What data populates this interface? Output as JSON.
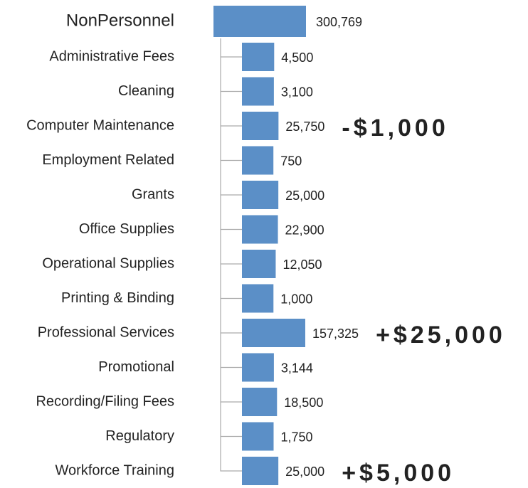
{
  "chart_data": {
    "type": "bar",
    "root": {
      "label": "NonPersonnel",
      "value": 300769,
      "value_label": "300,769"
    },
    "categories": [
      "Administrative Fees",
      "Cleaning",
      "Computer Maintenance",
      "Employment Related",
      "Grants",
      "Office Supplies",
      "Operational Supplies",
      "Printing & Binding",
      "Professional Services",
      "Promotional",
      "Recording/Filing Fees",
      "Regulatory",
      "Workforce Training"
    ],
    "values": [
      4500,
      3100,
      25750,
      750,
      25000,
      22900,
      12050,
      1000,
      157325,
      3144,
      18500,
      1750,
      25000
    ],
    "value_labels": [
      "4,500",
      "3,100",
      "25,750",
      "750",
      "25,000",
      "22,900",
      "12,050",
      "1,000",
      "157,325",
      "3,144",
      "18,500",
      "1,750",
      "25,000"
    ],
    "color": "#5b8fc7",
    "annotations": [
      {
        "text": "-$1,000",
        "category": 2,
        "color": "#c00000"
      },
      {
        "text": "+$25,000",
        "category": 8,
        "color": "#6aaa3a"
      },
      {
        "text": "+$5,000",
        "category": 12,
        "color": "#6aaa3a"
      }
    ]
  }
}
